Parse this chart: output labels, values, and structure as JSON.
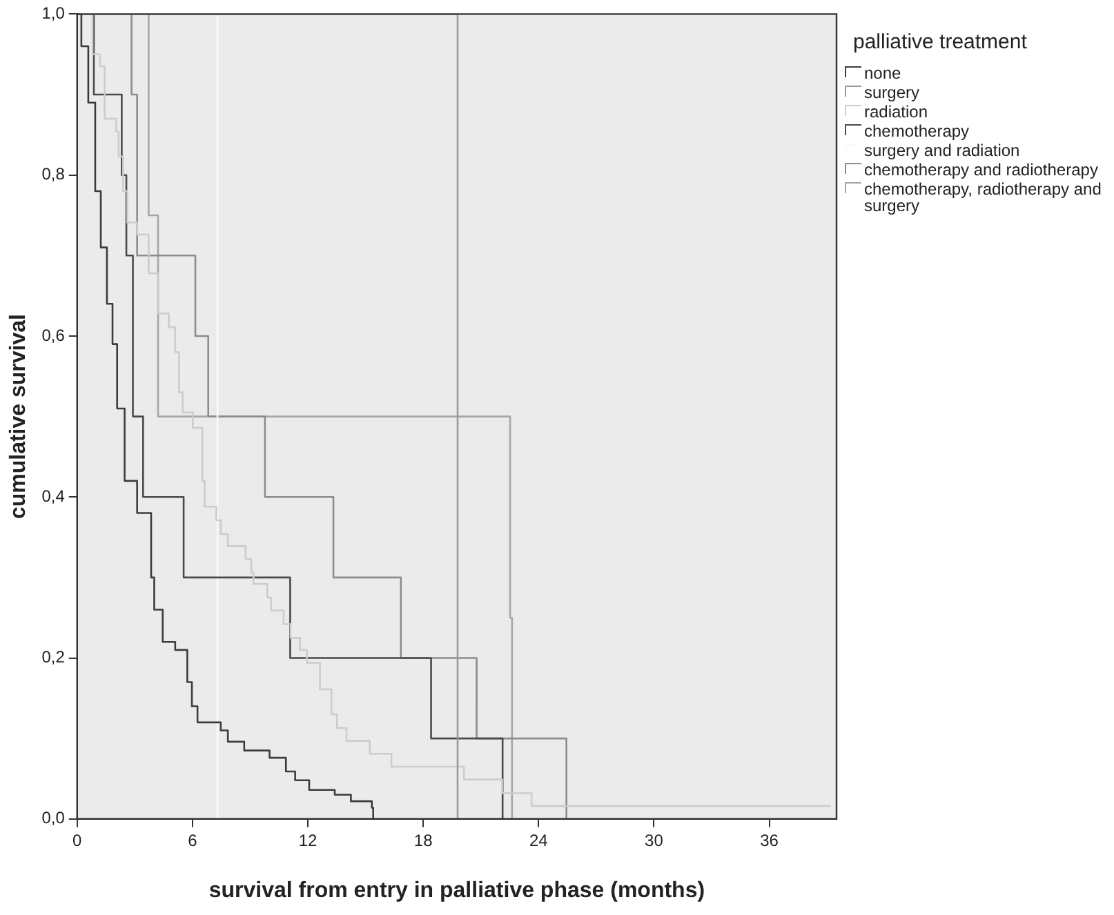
{
  "chart_data": {
    "type": "step",
    "xlabel": "survival from entry in palliative phase (months)",
    "ylabel": "cumulative survival",
    "legend_title": "palliative treatment",
    "legend": "top right",
    "grid": false,
    "xlim": [
      0,
      39.5
    ],
    "xticks": [
      0,
      6,
      12,
      18,
      24,
      30,
      36
    ],
    "ylim": [
      0,
      1
    ],
    "yticks": [
      {
        "value": 0,
        "label": "0,0"
      },
      {
        "value": 0.2,
        "label": "0,2"
      },
      {
        "value": 0.4,
        "label": "0,4"
      },
      {
        "value": 0.6,
        "label": "0,6"
      },
      {
        "value": 0.8,
        "label": "0,8"
      },
      {
        "value": 1,
        "label": "1,0"
      }
    ],
    "series": [
      {
        "name": "none",
        "color": "#3c3c3c",
        "x": [
          0,
          0.22,
          0.58,
          0.94,
          1.23,
          1.55,
          1.84,
          2.08,
          2.47,
          3.12,
          3.85,
          4.01,
          4.45,
          5.1,
          5.73,
          5.97,
          6.26,
          7.47,
          7.84,
          8.69,
          10.01,
          10.86,
          11.34,
          12.07,
          13.4,
          14.24,
          15.33,
          15.4
        ],
        "values": [
          1,
          0.96,
          0.89,
          0.78,
          0.71,
          0.64,
          0.59,
          0.51,
          0.42,
          0.38,
          0.3,
          0.26,
          0.22,
          0.21,
          0.17,
          0.14,
          0.12,
          0.11,
          0.096,
          0.085,
          0.076,
          0.059,
          0.048,
          0.036,
          0.03,
          0.022,
          0.014,
          0
        ]
      },
      {
        "name": "surgery",
        "color": "#9a9a9a",
        "x": [
          0,
          19.79
        ],
        "values": [
          1,
          0
        ]
      },
      {
        "name": "radiation",
        "color": "#cccccc",
        "x": [
          0,
          0.8,
          1.18,
          1.43,
          2.03,
          2.16,
          2.39,
          2.61,
          3.12,
          3.72,
          4.21,
          4.77,
          5.1,
          5.3,
          5.49,
          6.02,
          6.51,
          6.63,
          7.24,
          7.47,
          7.84,
          8.76,
          9.05,
          9.17,
          9.89,
          10.09,
          10.74,
          11.1,
          11.59,
          11.95,
          12.63,
          13.23,
          13.52,
          14.01,
          15.22,
          16.35,
          20.12,
          22.11,
          23.64,
          39.2
        ],
        "values": [
          1,
          0.95,
          0.935,
          0.87,
          0.854,
          0.823,
          0.78,
          0.741,
          0.726,
          0.678,
          0.628,
          0.611,
          0.58,
          0.53,
          0.505,
          0.486,
          0.42,
          0.388,
          0.371,
          0.354,
          0.339,
          0.323,
          0.306,
          0.292,
          0.275,
          0.259,
          0.242,
          0.225,
          0.21,
          0.194,
          0.161,
          0.13,
          0.113,
          0.097,
          0.081,
          0.065,
          0.049,
          0.032,
          0.016,
          0.016
        ]
      },
      {
        "name": "chemotherapy",
        "color": "#4a4a4a",
        "x": [
          0,
          0.87,
          2.32,
          2.56,
          2.9,
          3.43,
          5.54,
          11.08,
          18.41,
          22.13
        ],
        "values": [
          1,
          0.9,
          0.8,
          0.7,
          0.5,
          0.4,
          0.3,
          0.2,
          0.1,
          0
        ]
      },
      {
        "name": "surgery and radiation",
        "color": "#fafafa",
        "x": [
          0,
          7.3
        ],
        "values": [
          1,
          0
        ]
      },
      {
        "name": "chemotherapy and radiotherapy",
        "color": "#8c8c8c",
        "x": [
          0,
          2.83,
          3.12,
          6.15,
          6.82,
          9.77,
          13.33,
          16.84,
          20.78,
          25.45
        ],
        "values": [
          1,
          0.9,
          0.7,
          0.6,
          0.5,
          0.4,
          0.3,
          0.2,
          0.1,
          0
        ]
      },
      {
        "name": "chemotherapy, radiotherapy and surgery",
        "color": "#a6a6a6",
        "x": [
          0,
          3.72,
          4.21,
          22.52,
          22.62
        ],
        "values": [
          1,
          0.75,
          0.5,
          0.25,
          0
        ]
      }
    ]
  }
}
